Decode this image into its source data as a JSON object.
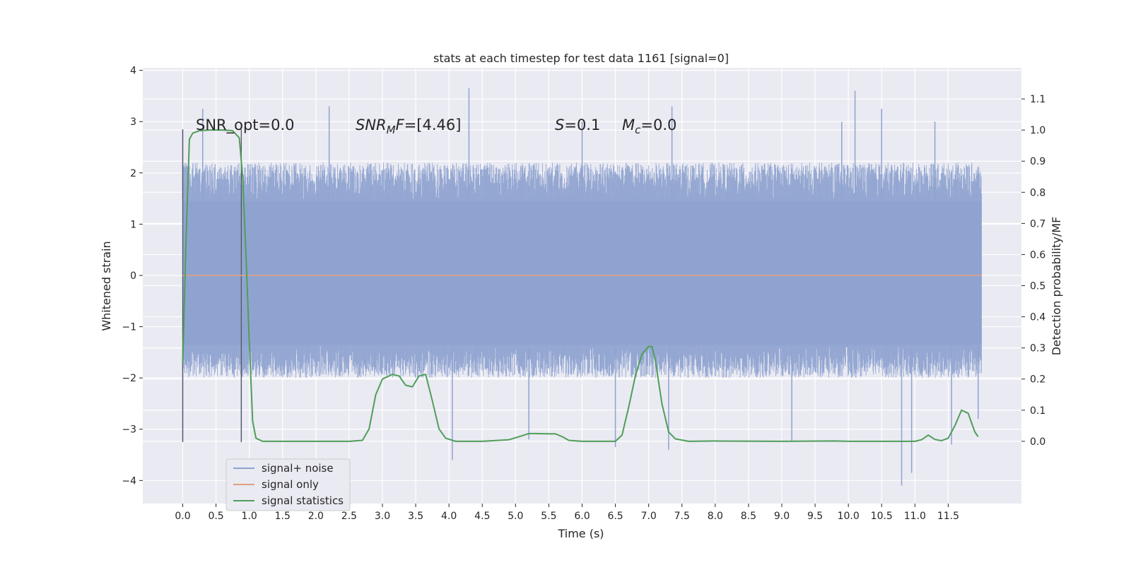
{
  "chart_data": {
    "type": "line",
    "title": "stats at each timestep for test data 1161 [signal=0]",
    "xlabel": "Time (s)",
    "ylabel": "Whitened strain",
    "y2label": "Detection probability/MF",
    "xlim": [
      -0.6,
      12.6
    ],
    "ylim": [
      -4.45,
      4.05
    ],
    "y2lim": [
      -0.2,
      1.2
    ],
    "x_ticks": [
      0.0,
      0.5,
      1.0,
      1.5,
      2.0,
      2.5,
      3.0,
      3.5,
      4.0,
      4.5,
      5.0,
      5.5,
      6.0,
      6.5,
      7.0,
      7.5,
      8.0,
      8.5,
      9.0,
      9.5,
      10.0,
      10.5,
      11.0,
      11.5
    ],
    "x_tick_labels": [
      "0.0",
      "0.5",
      "1.0",
      "1.5",
      "2.0",
      "2.5",
      "3.0",
      "3.5",
      "4.0",
      "4.5",
      "5.0",
      "5.5",
      "6.0",
      "6.5",
      "7.0",
      "7.5",
      "8.0",
      "8.5",
      "9.0",
      "9.5",
      "10.0",
      "10.5",
      "11.0",
      "11.5"
    ],
    "y_ticks": [
      -4,
      -3,
      -2,
      -1,
      0,
      1,
      2,
      3,
      4
    ],
    "y_tick_labels": [
      "−4",
      "−3",
      "−2",
      "−1",
      "0",
      "1",
      "2",
      "3",
      "4"
    ],
    "y2_ticks": [
      0.0,
      0.1,
      0.2,
      0.3,
      0.4,
      0.5,
      0.6,
      0.7,
      0.8,
      0.9,
      1.0,
      1.1
    ],
    "y2_tick_labels": [
      "0.0",
      "0.1",
      "0.2",
      "0.3",
      "0.4",
      "0.5",
      "0.6",
      "0.7",
      "0.8",
      "0.9",
      "1.0",
      "1.1"
    ],
    "grid": true,
    "legend_position": "lower-left",
    "series": [
      {
        "name": "signal+ noise",
        "axis": "left",
        "color": "#8fa3d0",
        "kind": "noise-band",
        "x_range": [
          0.0,
          12.0
        ],
        "typical_amplitude": [
          -2.0,
          2.2
        ],
        "peaks_high": [
          [
            0.0,
            2.85
          ],
          [
            0.3,
            3.25
          ],
          [
            2.2,
            3.3
          ],
          [
            4.3,
            3.65
          ],
          [
            6.0,
            3.0
          ],
          [
            7.35,
            3.3
          ],
          [
            9.9,
            3.0
          ],
          [
            10.1,
            3.6
          ],
          [
            10.5,
            3.25
          ],
          [
            11.3,
            3.0
          ]
        ],
        "peaks_low": [
          [
            0.0,
            -3.25
          ],
          [
            0.88,
            -3.25
          ],
          [
            4.05,
            -3.6
          ],
          [
            5.2,
            -3.2
          ],
          [
            6.5,
            -3.35
          ],
          [
            7.3,
            -3.4
          ],
          [
            9.15,
            -3.25
          ],
          [
            10.8,
            -4.1
          ],
          [
            10.95,
            -3.85
          ],
          [
            11.55,
            -3.3
          ],
          [
            11.95,
            -2.8
          ]
        ]
      },
      {
        "name": "signal only",
        "axis": "left",
        "color": "#dd9f86",
        "x": [
          0.0,
          12.0
        ],
        "y": [
          0.0,
          0.0
        ]
      },
      {
        "name": "signal statistics",
        "axis": "right",
        "color": "#4f9e5a",
        "x": [
          0.0,
          0.05,
          0.1,
          0.15,
          0.25,
          0.4,
          0.6,
          0.75,
          0.85,
          0.9,
          0.95,
          1.0,
          1.05,
          1.1,
          1.2,
          1.4,
          2.0,
          2.5,
          2.7,
          2.8,
          2.9,
          3.0,
          3.15,
          3.25,
          3.35,
          3.45,
          3.55,
          3.65,
          3.75,
          3.85,
          3.95,
          4.1,
          4.5,
          4.9,
          5.1,
          5.2,
          5.3,
          5.5,
          5.6,
          5.7,
          5.8,
          6.0,
          6.5,
          6.6,
          6.7,
          6.8,
          6.9,
          7.0,
          7.05,
          7.1,
          7.2,
          7.3,
          7.4,
          7.6,
          8.0,
          9.0,
          9.8,
          10.0,
          11.0,
          11.1,
          11.2,
          11.3,
          11.4,
          11.5,
          11.6,
          11.7,
          11.8,
          11.9,
          11.95
        ],
        "y": [
          0.25,
          0.65,
          0.97,
          0.99,
          0.998,
          1.0,
          1.0,
          0.998,
          0.975,
          0.85,
          0.6,
          0.32,
          0.065,
          0.01,
          0.0,
          0.0,
          0.0,
          0.0,
          0.003,
          0.04,
          0.15,
          0.2,
          0.215,
          0.21,
          0.18,
          0.175,
          0.21,
          0.215,
          0.13,
          0.04,
          0.01,
          0.0,
          0.0,
          0.005,
          0.018,
          0.025,
          0.025,
          0.024,
          0.024,
          0.015,
          0.003,
          0.0,
          0.0,
          0.02,
          0.11,
          0.21,
          0.28,
          0.305,
          0.305,
          0.26,
          0.12,
          0.03,
          0.008,
          0.0,
          0.001,
          0.0,
          0.001,
          0.0,
          0.0,
          0.005,
          0.02,
          0.006,
          0.002,
          0.01,
          0.05,
          0.1,
          0.09,
          0.03,
          0.015
        ]
      }
    ],
    "vertical_markers": [
      {
        "x": 0.0,
        "y_from": -3.25,
        "y_to": 2.85
      },
      {
        "x": 0.88,
        "y_from": -3.25,
        "y_to": 2.85
      }
    ],
    "annotations": {
      "snr_opt": "SNR_opt=0.0",
      "snr_mf_base": "SNR",
      "snr_mf_sub": "M",
      "snr_mf_tail": "F",
      "snr_mf_value": "=[4.46]",
      "s_label": "S",
      "s_value": "=0.1",
      "mc_base": "M",
      "mc_sub": "c",
      "mc_value": "=0.0"
    }
  }
}
